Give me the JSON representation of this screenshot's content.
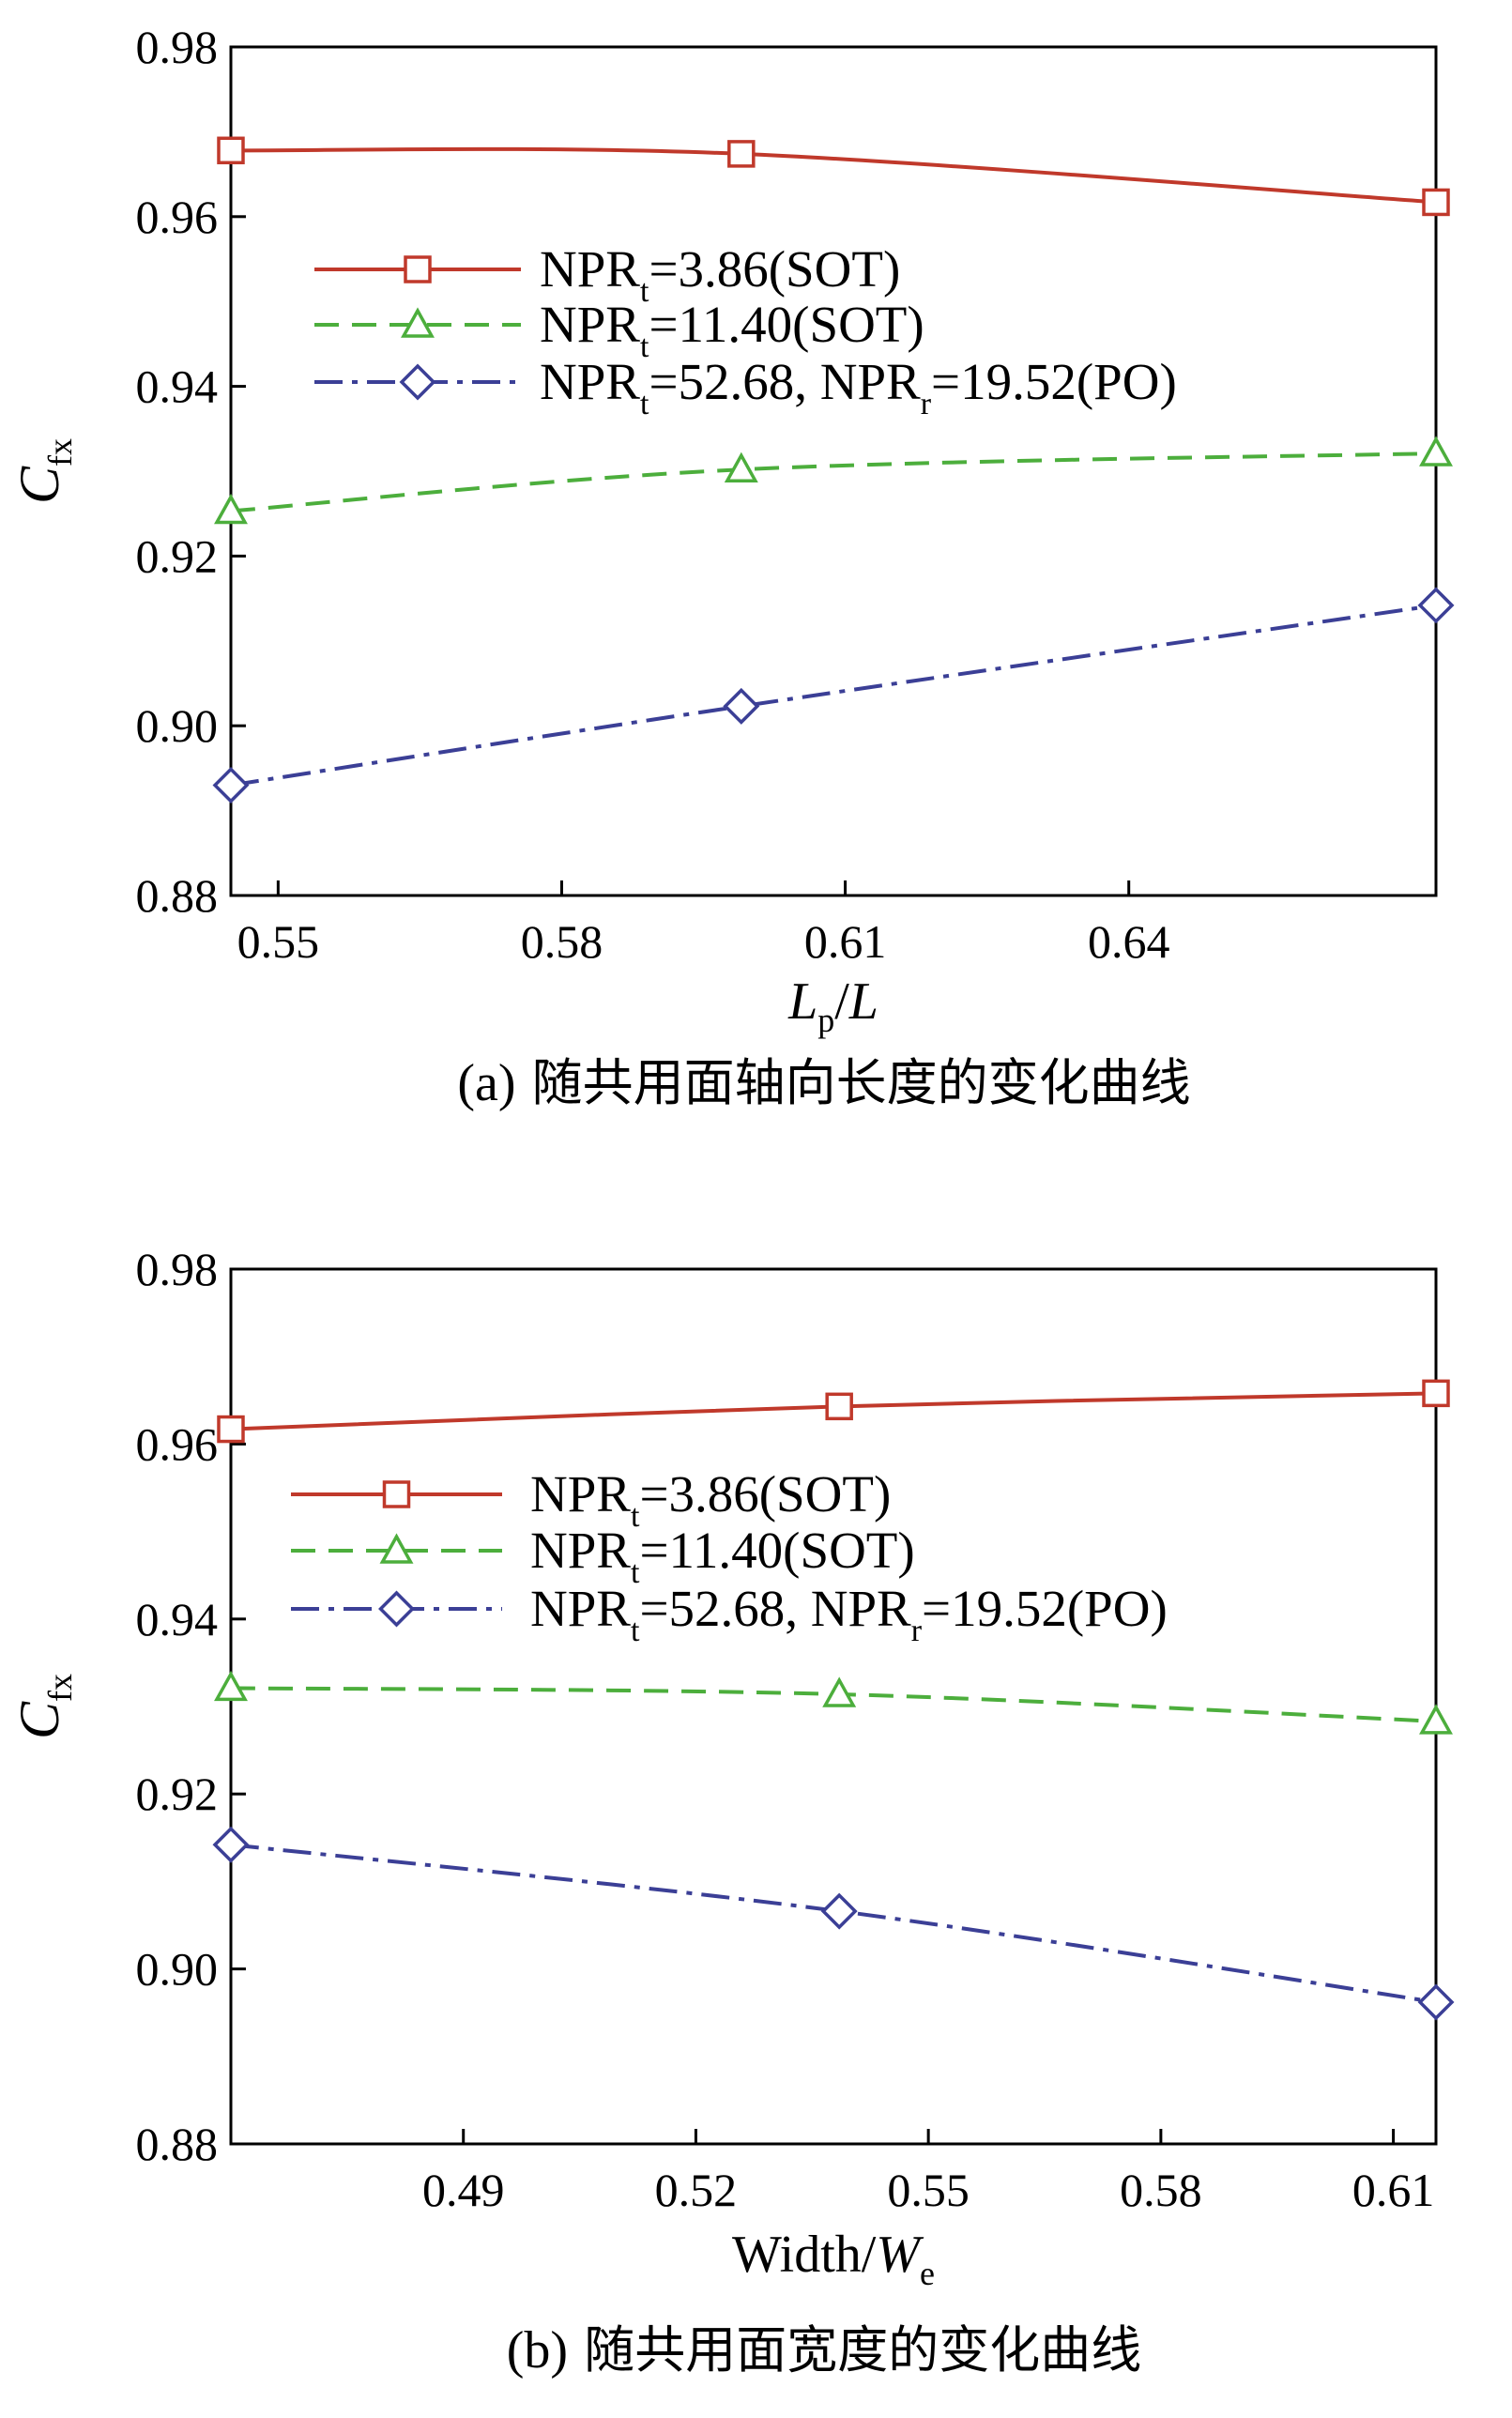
{
  "chart_data": [
    {
      "type": "line",
      "panel": "a",
      "caption_label": "(a)",
      "caption_text": "随共用面轴向长度的变化曲线",
      "ylabel_main": "C",
      "ylabel_sub": "fx",
      "xlabel_main": "L",
      "xlabel_sub": "p",
      "xlabel_tail": "/L",
      "xlim": [
        0.545,
        0.6725
      ],
      "ylim": [
        0.88,
        0.98
      ],
      "xticks": [
        0.55,
        0.58,
        0.61,
        0.64
      ],
      "xtick_labels": [
        "0.55",
        "0.58",
        "0.61",
        "0.64"
      ],
      "yticks": [
        0.88,
        0.9,
        0.92,
        0.94,
        0.96,
        0.98
      ],
      "ytick_labels": [
        "0.88",
        "0.90",
        "0.92",
        "0.94",
        "0.96",
        "0.98"
      ],
      "legend_position": "upper-left",
      "series": [
        {
          "name": "NPRt=3.86(SOT)",
          "legend_parts": [
            "NPR",
            "t",
            "=3.86(SOT)"
          ],
          "color": "#c0392b",
          "marker": "square",
          "dash": "solid",
          "x": [
            0.545,
            0.599,
            0.6725
          ],
          "values": [
            0.9678,
            0.9674,
            0.9617
          ]
        },
        {
          "name": "NPRt=11.40(SOT)",
          "legend_parts": [
            "NPR",
            "t",
            "=11.40(SOT)"
          ],
          "color": "#4cae3c",
          "marker": "triangle",
          "dash": "dashed",
          "x": [
            0.545,
            0.599,
            0.6725
          ],
          "values": [
            0.9253,
            0.9302,
            0.9321
          ]
        },
        {
          "name": "NPRt=52.68, NPRr=19.52(PO)",
          "legend_parts": [
            "NPR",
            "t",
            "=52.68, NPR",
            "r",
            "=19.52(PO)"
          ],
          "color": "#3b3f96",
          "marker": "diamond",
          "dash": "dashdot",
          "x": [
            0.545,
            0.599,
            0.6725
          ],
          "values": [
            0.893,
            0.9023,
            0.9142
          ]
        }
      ]
    },
    {
      "type": "line",
      "panel": "b",
      "caption_label": "(b)",
      "caption_text": "随共用面宽度的变化曲线",
      "ylabel_main": "C",
      "ylabel_sub": "fx",
      "xlabel_main": "Width/",
      "xlabel_italic": "W",
      "xlabel_sub": "e",
      "xlim": [
        0.46,
        0.6155
      ],
      "ylim": [
        0.88,
        0.98
      ],
      "xticks": [
        0.49,
        0.52,
        0.55,
        0.58,
        0.61
      ],
      "xtick_labels": [
        "0.49",
        "0.52",
        "0.55",
        "0.58",
        "0.61"
      ],
      "yticks": [
        0.88,
        0.9,
        0.92,
        0.94,
        0.96,
        0.98
      ],
      "ytick_labels": [
        "0.88",
        "0.90",
        "0.92",
        "0.94",
        "0.96",
        "0.98"
      ],
      "legend_position": "upper-left",
      "series": [
        {
          "name": "NPRt=3.86(SOT)",
          "legend_parts": [
            "NPR",
            "t",
            "=3.86(SOT)"
          ],
          "color": "#c0392b",
          "marker": "square",
          "dash": "solid",
          "x": [
            0.46,
            0.5385,
            0.6155
          ],
          "values": [
            0.9617,
            0.9643,
            0.9658
          ]
        },
        {
          "name": "NPRt=11.40(SOT)",
          "legend_parts": [
            "NPR",
            "t",
            "=11.40(SOT)"
          ],
          "color": "#4cae3c",
          "marker": "triangle",
          "dash": "dashed",
          "x": [
            0.46,
            0.5385,
            0.6155
          ],
          "values": [
            0.9321,
            0.9314,
            0.9283
          ]
        },
        {
          "name": "NPRt=52.68, NPRr=19.52(PO)",
          "legend_parts": [
            "NPR",
            "t",
            "=52.68, NPR",
            "r",
            "=19.52(PO)"
          ],
          "color": "#3b3f96",
          "marker": "diamond",
          "dash": "dashdot",
          "x": [
            0.46,
            0.5385,
            0.6155
          ],
          "values": [
            0.9142,
            0.9066,
            0.8962
          ]
        }
      ]
    }
  ]
}
